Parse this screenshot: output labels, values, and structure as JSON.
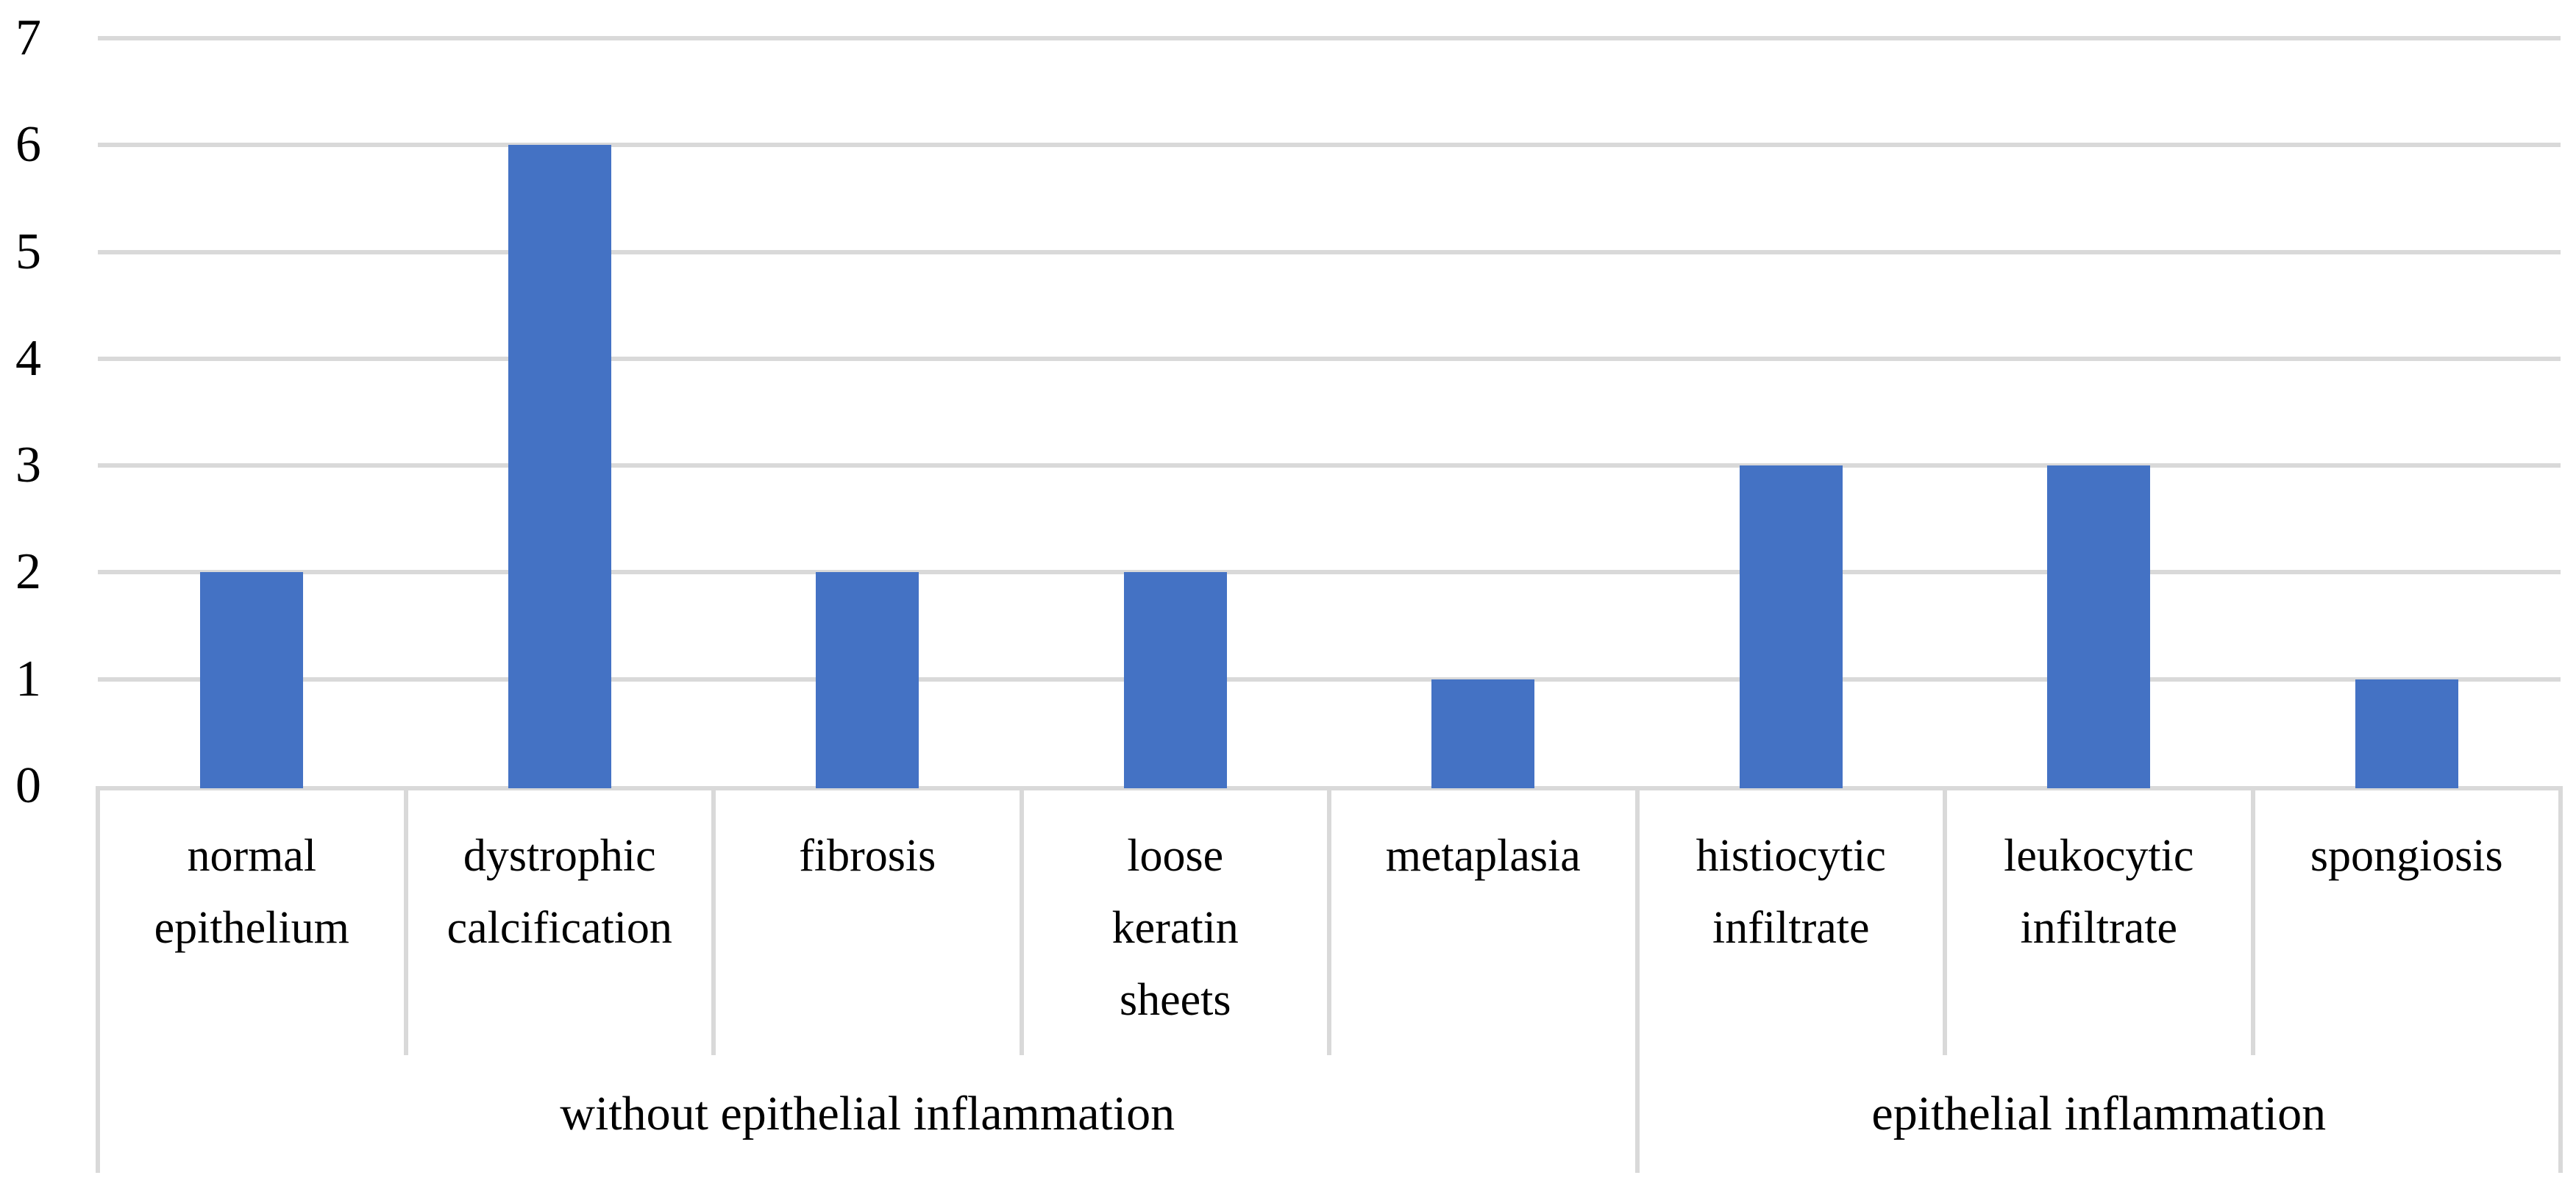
{
  "chart_data": {
    "type": "bar",
    "title": "",
    "xlabel": "",
    "ylabel": "",
    "categories": [
      "normal epithelium",
      "dystrophic calcification",
      "fibrosis",
      "loose keratin sheets",
      "metaplasia",
      "histiocytic infiltrate",
      "leukocytic infiltrate",
      "spongiosis"
    ],
    "category_display_lines": [
      [
        "normal",
        "epithelium"
      ],
      [
        "dystrophic",
        "calcification"
      ],
      [
        "fibrosis"
      ],
      [
        "loose",
        "keratin",
        "sheets"
      ],
      [
        "metaplasia"
      ],
      [
        "histiocytic",
        "infiltrate"
      ],
      [
        "leukocytic",
        "infiltrate"
      ],
      [
        "spongiosis"
      ]
    ],
    "values": [
      2,
      6,
      2,
      2,
      1,
      3,
      3,
      1
    ],
    "groups": [
      {
        "label": "without epithelial inflammation",
        "span": 5
      },
      {
        "label": "epithelial inflammation",
        "span": 3
      }
    ],
    "y_ticks": [
      "0",
      "1",
      "2",
      "3",
      "4",
      "5",
      "6",
      "7"
    ],
    "ylim": [
      0,
      7
    ],
    "grid": true,
    "legend": false,
    "colors": {
      "bar": "#4472C4",
      "gridline": "#D9D9D9",
      "axis_line": "#D9D9D9",
      "text": "#000000",
      "background": "#FFFFFF"
    }
  }
}
